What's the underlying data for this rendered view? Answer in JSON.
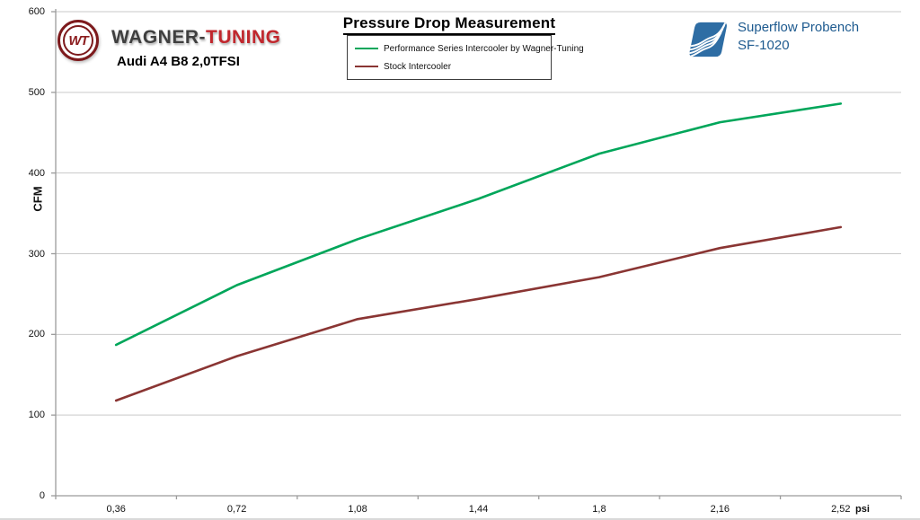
{
  "header": {
    "brand": {
      "logo_monogram": "WT",
      "name_primary": "WAGNER-",
      "name_secondary": "TUNING",
      "subtitle": "Audi A4 B8 2,0TFSI"
    },
    "equipment": {
      "line1": "Superflow Probench",
      "line2": "SF-1020"
    }
  },
  "chart_data": {
    "type": "line",
    "title": "Pressure Drop Measurement",
    "xlabel": "psi",
    "ylabel": "CFM",
    "categories": [
      "0,36",
      "0,72",
      "1,08",
      "1,44",
      "1,8",
      "2,16",
      "2,52"
    ],
    "series": [
      {
        "name": "Performance Series Intercooler by Wagner-Tuning",
        "color": "#00a65a",
        "values": [
          187,
          261,
          318,
          368,
          424,
          463,
          486
        ]
      },
      {
        "name": "Stock Intercooler",
        "color": "#8a3533",
        "values": [
          118,
          173,
          219,
          244,
          271,
          307,
          333
        ]
      }
    ],
    "ylim": [
      0,
      600
    ],
    "ytick_step": 100,
    "yticks": [
      "0",
      "100",
      "200",
      "300",
      "400",
      "500",
      "600"
    ],
    "grid": true,
    "legend_position": "top-center",
    "gridline_color": "#c9c9c9",
    "axis_color": "#9b9b9b"
  }
}
